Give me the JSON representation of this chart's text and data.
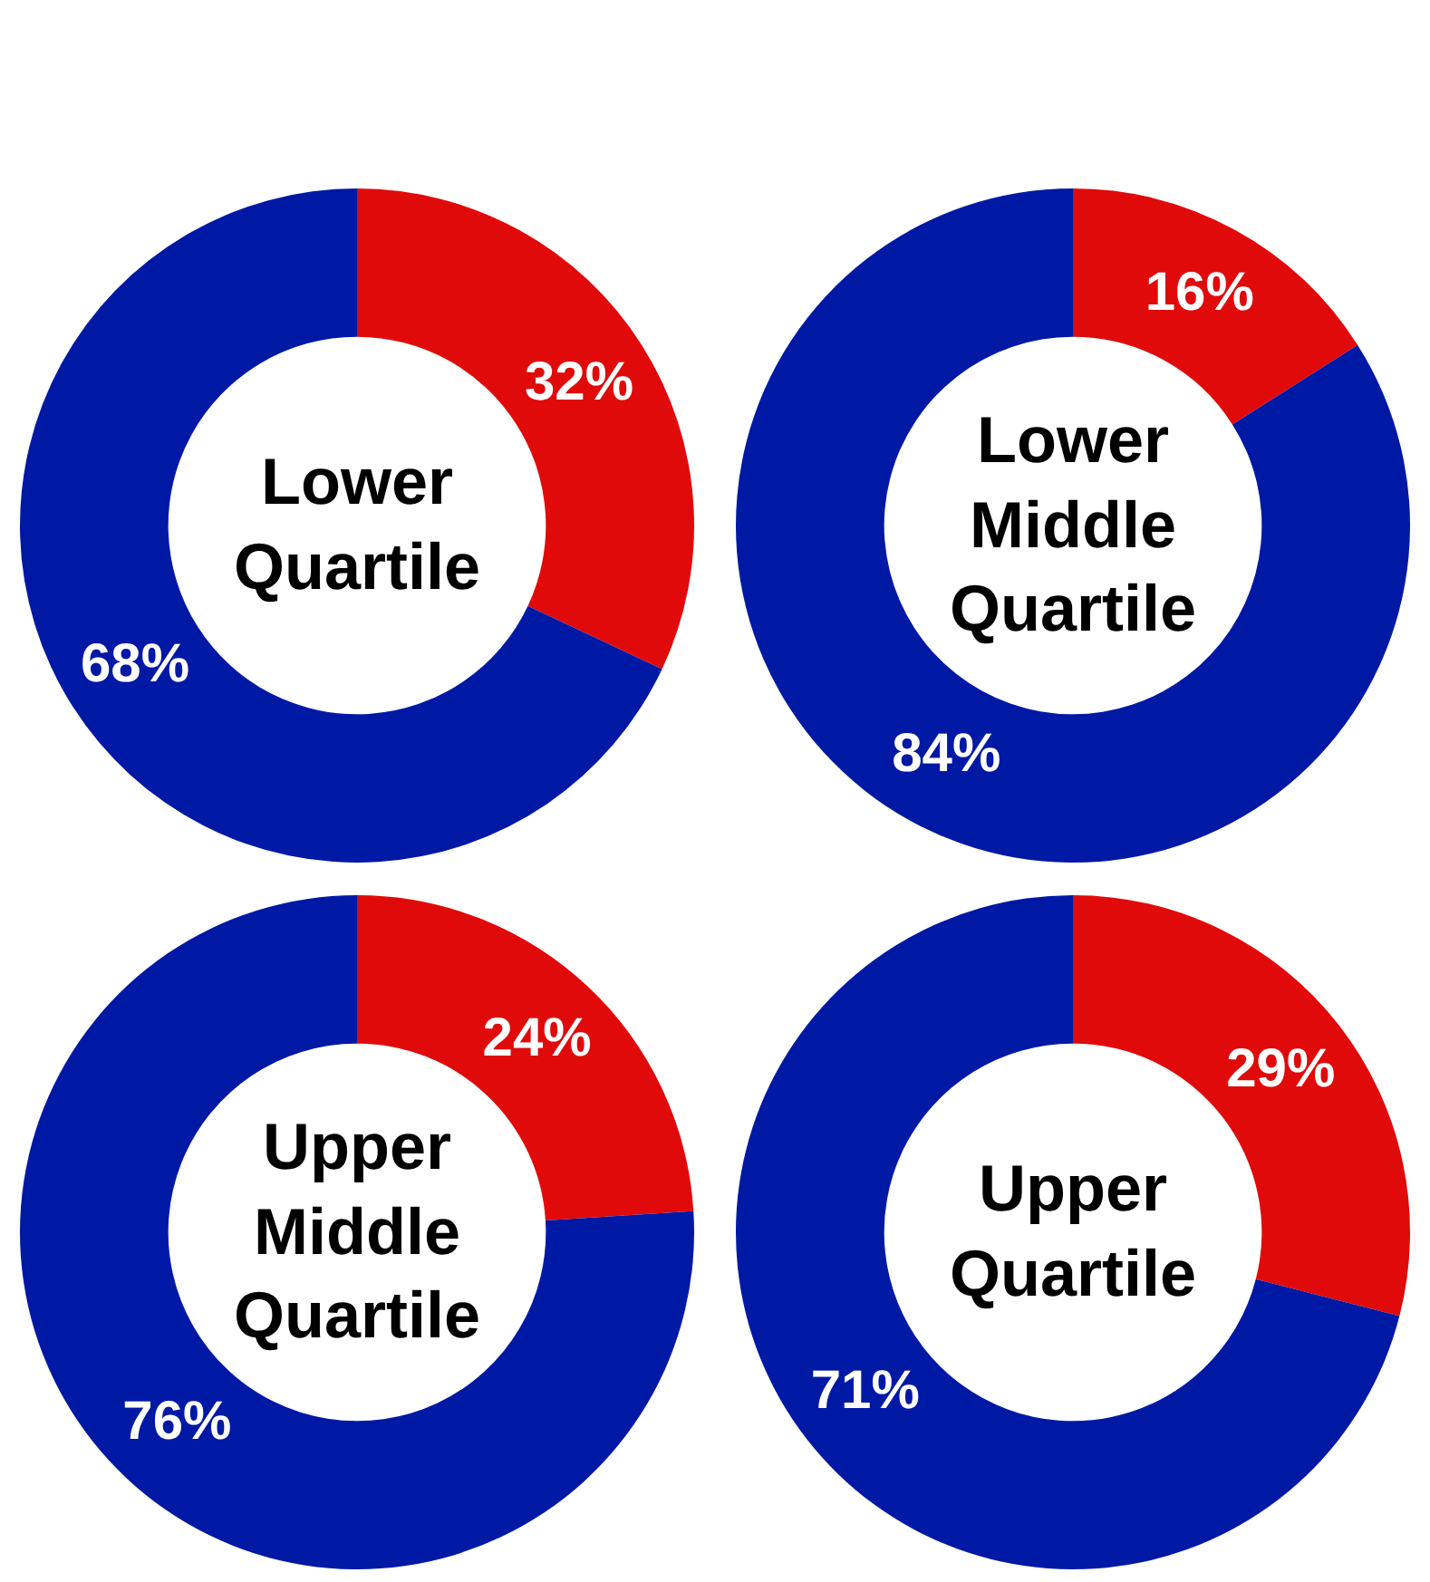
{
  "chart_data": [
    {
      "type": "donut",
      "title": "Lower Quartile",
      "categories": [
        null,
        null
      ],
      "values": [
        32,
        68
      ],
      "colors": [
        "#e10a0a",
        "#0019a5"
      ],
      "value_labels": [
        "32%",
        "68%"
      ]
    },
    {
      "type": "donut",
      "title": "Lower Middle Quartile",
      "categories": [
        null,
        null
      ],
      "values": [
        16,
        84
      ],
      "colors": [
        "#e10a0a",
        "#0019a5"
      ],
      "value_labels": [
        "16%",
        "84%"
      ]
    },
    {
      "type": "donut",
      "title": "Upper Middle Quartile",
      "categories": [
        null,
        null
      ],
      "values": [
        24,
        76
      ],
      "colors": [
        "#e10a0a",
        "#0019a5"
      ],
      "value_labels": [
        "24%",
        "76%"
      ]
    },
    {
      "type": "donut",
      "title": "Upper Quartile",
      "categories": [
        null,
        null
      ],
      "values": [
        29,
        71
      ],
      "colors": [
        "#e10a0a",
        "#0019a5"
      ],
      "value_labels": [
        "29%",
        "71%"
      ]
    }
  ]
}
